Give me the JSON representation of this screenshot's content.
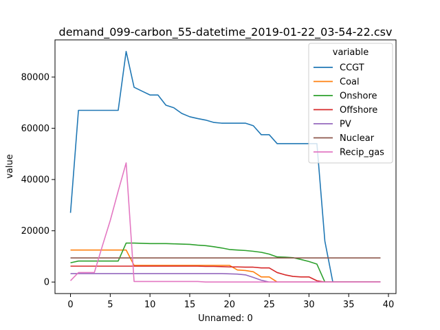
{
  "chart_data": {
    "type": "line",
    "title": "demand_099-carbon_55-datetime_2019-01-22_03-54-22.csv",
    "xlabel": "Unnamed: 0",
    "ylabel": "value",
    "xlim": [
      -1.95,
      40.95
    ],
    "ylim": [
      -4500,
      94500
    ],
    "xticks": [
      0,
      5,
      10,
      15,
      20,
      25,
      30,
      35,
      40
    ],
    "yticks": [
      0,
      20000,
      40000,
      60000,
      80000
    ],
    "ytick_labels": [
      "0",
      "20000",
      "40000",
      "60000",
      "80000"
    ],
    "legend_title": "variable",
    "legend_position": "top-right",
    "x": [
      0,
      1,
      2,
      3,
      4,
      5,
      6,
      7,
      8,
      9,
      10,
      11,
      12,
      13,
      14,
      15,
      16,
      17,
      18,
      19,
      20,
      21,
      22,
      23,
      24,
      25,
      26,
      27,
      28,
      29,
      30,
      31,
      32,
      33,
      34,
      35,
      36,
      37,
      38,
      39
    ],
    "series": [
      {
        "name": "CCGT",
        "color": "#1f77b4",
        "values": [
          27000,
          67000,
          67000,
          67000,
          67000,
          67000,
          67000,
          90000,
          76000,
          74500,
          73000,
          73000,
          69000,
          68000,
          65800,
          64500,
          63800,
          63200,
          62300,
          62000,
          62000,
          62000,
          62000,
          61000,
          57500,
          57500,
          54000,
          54000,
          54000,
          54000,
          54000,
          54000,
          16000,
          0,
          0,
          0,
          0,
          0,
          0,
          0
        ]
      },
      {
        "name": "Coal",
        "color": "#ff7f0e",
        "values": [
          12500,
          12500,
          12500,
          12500,
          12500,
          12500,
          12500,
          12500,
          6500,
          6500,
          6500,
          6500,
          6500,
          6500,
          6500,
          6500,
          6500,
          6500,
          6500,
          6500,
          6500,
          4700,
          4500,
          4000,
          2000,
          2000,
          0,
          0,
          0,
          0,
          0,
          0,
          0,
          0,
          0,
          0,
          0,
          0,
          0,
          0
        ]
      },
      {
        "name": "Onshore",
        "color": "#2ca02c",
        "values": [
          7500,
          8200,
          8200,
          8200,
          8200,
          8200,
          8200,
          15200,
          15200,
          15100,
          15000,
          15000,
          15000,
          14900,
          14800,
          14700,
          14400,
          14200,
          13800,
          13300,
          12700,
          12500,
          12300,
          12000,
          11600,
          10900,
          9800,
          9700,
          9500,
          8800,
          8000,
          7000,
          0,
          0,
          0,
          0,
          0,
          0,
          0,
          0
        ]
      },
      {
        "name": "Offshore",
        "color": "#d62728",
        "values": [
          6200,
          6200,
          6200,
          6200,
          6200,
          6200,
          6200,
          6200,
          6200,
          6200,
          6200,
          6200,
          6200,
          6200,
          6200,
          6200,
          6200,
          6100,
          6100,
          6000,
          5900,
          5900,
          5800,
          5800,
          5500,
          5500,
          3700,
          2800,
          2200,
          2000,
          2000,
          500,
          0,
          0,
          0,
          0,
          0,
          0,
          0,
          0
        ]
      },
      {
        "name": "PV",
        "color": "#9467bd",
        "values": [
          3300,
          3300,
          3300,
          3300,
          3300,
          3300,
          3300,
          3300,
          3300,
          3300,
          3300,
          3300,
          3300,
          3300,
          3300,
          3300,
          3300,
          3300,
          3300,
          3300,
          3200,
          3100,
          2800,
          1800,
          700,
          0,
          0,
          0,
          0,
          0,
          0,
          0,
          0,
          0,
          0,
          0,
          0,
          0,
          0,
          0
        ]
      },
      {
        "name": "Nuclear",
        "color": "#8c564b",
        "values": [
          9400,
          9400,
          9400,
          9400,
          9400,
          9400,
          9400,
          9400,
          9400,
          9400,
          9400,
          9400,
          9400,
          9400,
          9400,
          9400,
          9400,
          9400,
          9400,
          9400,
          9400,
          9400,
          9400,
          9400,
          9400,
          9400,
          9400,
          9400,
          9400,
          9400,
          9400,
          9400,
          9400,
          9400,
          9400,
          9400,
          9400,
          9400,
          9400,
          9400
        ]
      },
      {
        "name": "Recip_gas",
        "color": "#e377c2",
        "values": [
          500,
          3700,
          3700,
          3700,
          14000,
          24000,
          35500,
          46500,
          200,
          200,
          200,
          200,
          200,
          200,
          200,
          200,
          200,
          0,
          0,
          0,
          0,
          0,
          0,
          0,
          0,
          0,
          0,
          0,
          0,
          0,
          0,
          0,
          0,
          0,
          0,
          0,
          0,
          0,
          0,
          0
        ]
      }
    ]
  }
}
